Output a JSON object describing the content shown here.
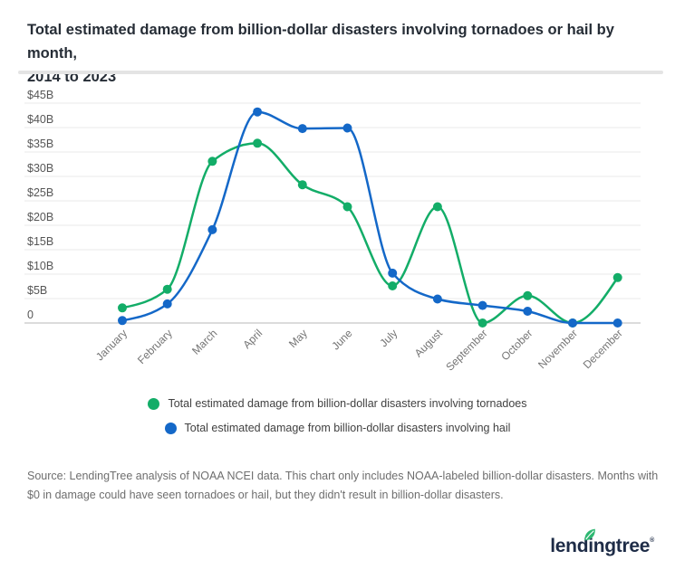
{
  "title_lines": [
    "Total estimated damage from billion-dollar disasters involving tornadoes or hail by month,",
    "2014 to 2023"
  ],
  "chart_data": {
    "type": "line",
    "title": "Total estimated damage from billion-dollar disasters involving tornadoes or hail by month, 2014 to 2023",
    "categories": [
      "January",
      "February",
      "March",
      "April",
      "May",
      "June",
      "July",
      "August",
      "September",
      "October",
      "November",
      "December"
    ],
    "series": [
      {
        "name": "Total estimated damage from billion-dollar disasters involving tornadoes",
        "color": "#13ad68",
        "values": [
          3.1,
          6.9,
          33.1,
          36.8,
          28.3,
          23.8,
          7.6,
          23.8,
          0,
          5.6,
          0,
          9.3
        ]
      },
      {
        "name": "Total estimated damage from billion-dollar disasters involving hail",
        "color": "#1468c8",
        "values": [
          0.5,
          3.9,
          19.1,
          43.2,
          39.8,
          39.9,
          10.2,
          4.9,
          3.6,
          2.4,
          0,
          0
        ]
      }
    ],
    "y_ticks": [
      "$45B",
      "$40B",
      "$35B",
      "$30B",
      "$25B",
      "$20B",
      "$15B",
      "$10B",
      "$5B",
      "0"
    ],
    "ylim": [
      0,
      45
    ],
    "y_tick_interval": 5,
    "unit": "$B",
    "grid": true,
    "legend_position": "bottom"
  },
  "source_note": "Source: LendingTree analysis of NOAA NCEI data. This chart only includes NOAA-labeled billion-dollar disasters. Months with $0 in damage could have seen tornadoes or hail, but they didn't result in billion-dollar disasters.",
  "logo": {
    "text": "lendingtree",
    "registered_mark": "®"
  }
}
